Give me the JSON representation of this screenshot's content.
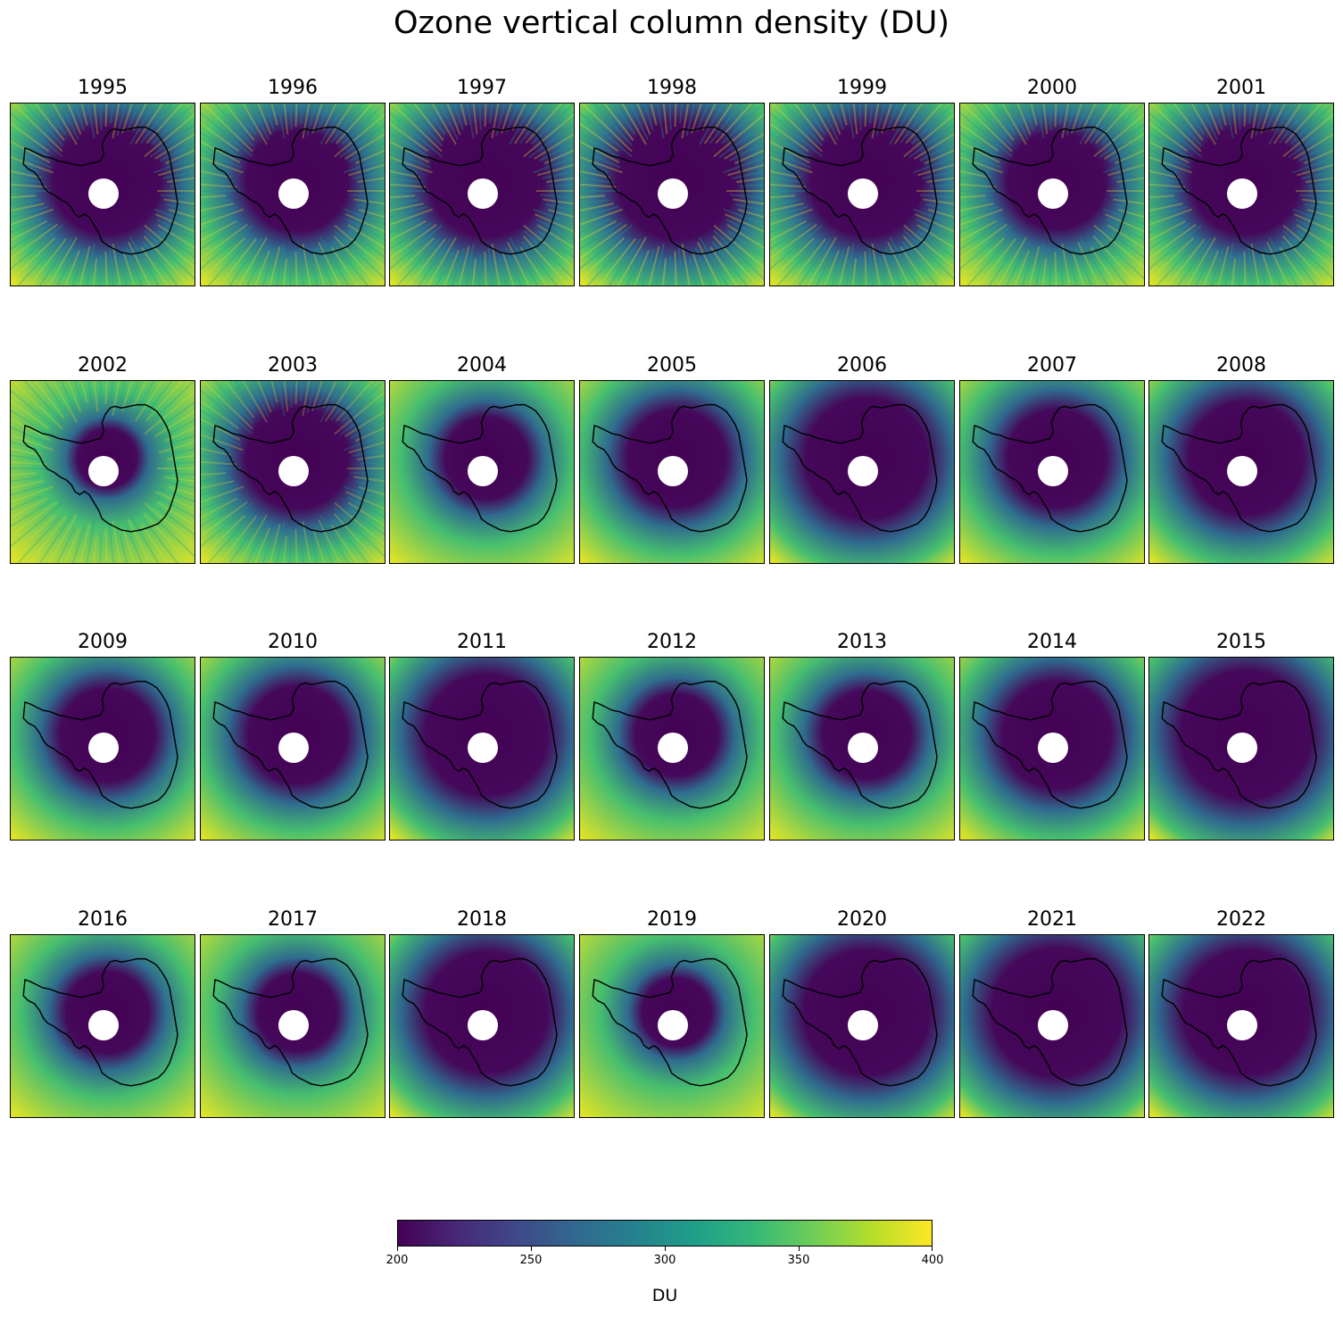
{
  "chart_data": {
    "type": "heatmap",
    "title": "Ozone vertical column density (DU)",
    "colormap": "viridis",
    "colorbar": {
      "range": [
        200,
        400
      ],
      "ticks": [
        200,
        250,
        300,
        350,
        400
      ],
      "label": "DU"
    },
    "panels": [
      {
        "year": "1995",
        "hole_strength": 0.55,
        "noise": 0.9
      },
      {
        "year": "1996",
        "hole_strength": 0.52,
        "noise": 0.85
      },
      {
        "year": "1997",
        "hole_strength": 0.58,
        "noise": 0.9
      },
      {
        "year": "1998",
        "hole_strength": 0.6,
        "noise": 0.95
      },
      {
        "year": "1999",
        "hole_strength": 0.57,
        "noise": 0.9
      },
      {
        "year": "2000",
        "hole_strength": 0.5,
        "noise": 0.85
      },
      {
        "year": "2001",
        "hole_strength": 0.55,
        "noise": 0.85
      },
      {
        "year": "2002",
        "hole_strength": 0.3,
        "noise": 0.8
      },
      {
        "year": "2003",
        "hole_strength": 0.52,
        "noise": 0.75
      },
      {
        "year": "2004",
        "hole_strength": 0.42,
        "noise": 0.0
      },
      {
        "year": "2005",
        "hole_strength": 0.5,
        "noise": 0.0
      },
      {
        "year": "2006",
        "hole_strength": 0.62,
        "noise": 0.0
      },
      {
        "year": "2007",
        "hole_strength": 0.5,
        "noise": 0.0
      },
      {
        "year": "2008",
        "hole_strength": 0.58,
        "noise": 0.0
      },
      {
        "year": "2009",
        "hole_strength": 0.48,
        "noise": 0.0
      },
      {
        "year": "2010",
        "hole_strength": 0.5,
        "noise": 0.0
      },
      {
        "year": "2011",
        "hole_strength": 0.62,
        "noise": 0.0
      },
      {
        "year": "2012",
        "hole_strength": 0.42,
        "noise": 0.0
      },
      {
        "year": "2013",
        "hole_strength": 0.45,
        "noise": 0.0
      },
      {
        "year": "2014",
        "hole_strength": 0.55,
        "noise": 0.0
      },
      {
        "year": "2015",
        "hole_strength": 0.66,
        "noise": 0.0
      },
      {
        "year": "2016",
        "hole_strength": 0.42,
        "noise": 0.0
      },
      {
        "year": "2017",
        "hole_strength": 0.4,
        "noise": 0.0
      },
      {
        "year": "2018",
        "hole_strength": 0.62,
        "noise": 0.0
      },
      {
        "year": "2019",
        "hole_strength": 0.35,
        "noise": 0.0
      },
      {
        "year": "2020",
        "hole_strength": 0.64,
        "noise": 0.0
      },
      {
        "year": "2021",
        "hole_strength": 0.66,
        "noise": 0.0
      },
      {
        "year": "2022",
        "hole_strength": 0.64,
        "noise": 0.0
      }
    ]
  }
}
